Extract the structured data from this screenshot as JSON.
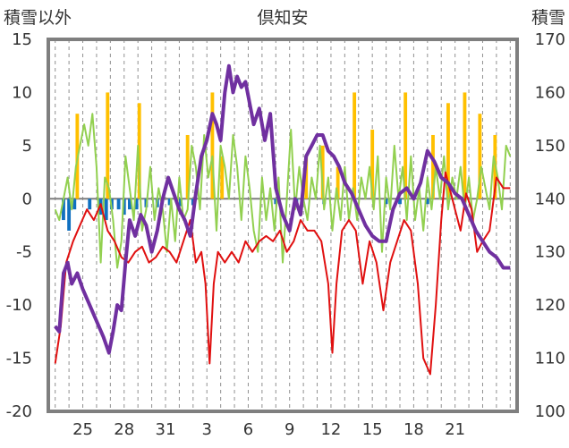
{
  "chart_data": {
    "type": "line",
    "title": "倶知安",
    "left_axis_label": "積雪以外",
    "right_axis_label": "積雪",
    "left_ylim": [
      -20,
      15
    ],
    "left_ticks": [
      "15",
      "10",
      "5",
      "0",
      "-5",
      "-10",
      "-15",
      "-20"
    ],
    "right_ylim": [
      100,
      170
    ],
    "right_ticks": [
      "170",
      "160",
      "150",
      "140",
      "130",
      "120",
      "110",
      "100"
    ],
    "x_ticks": [
      "25",
      "28",
      "31",
      "3",
      "6",
      "9",
      "12",
      "15",
      "18",
      "21"
    ],
    "grid": "vertical dashed",
    "colors": {
      "temperature": "#e01010",
      "snow_depth": "#7030a0",
      "precipitation_orange": "#ffc000",
      "precipitation_blue": "#1070c0",
      "green_series": "#92d050",
      "frame": "#7f7f7f"
    },
    "series": [
      {
        "key": "temperature",
        "axis": "left",
        "points": [
          [
            23.0,
            -15.5
          ],
          [
            23.4,
            -12.0
          ],
          [
            23.8,
            -6.0
          ],
          [
            24.3,
            -4.0
          ],
          [
            24.8,
            -2.5
          ],
          [
            25.3,
            -1.0
          ],
          [
            25.8,
            -2.0
          ],
          [
            26.3,
            -0.5
          ],
          [
            26.8,
            -3.0
          ],
          [
            27.3,
            -4.0
          ],
          [
            27.8,
            -5.5
          ],
          [
            28.3,
            -6.0
          ],
          [
            28.8,
            -5.0
          ],
          [
            29.3,
            -4.5
          ],
          [
            29.8,
            -6.0
          ],
          [
            30.3,
            -5.5
          ],
          [
            30.8,
            -4.5
          ],
          [
            31.3,
            -5.0
          ],
          [
            31.8,
            -6.0
          ],
          [
            32.3,
            -4.0
          ],
          [
            32.8,
            -2.0
          ],
          [
            33.2,
            -6.0
          ],
          [
            33.6,
            -5.0
          ],
          [
            33.9,
            -8.0
          ],
          [
            34.2,
            -15.5
          ],
          [
            34.5,
            -8.0
          ],
          [
            34.8,
            -5.0
          ],
          [
            35.3,
            -6.0
          ],
          [
            35.8,
            -5.0
          ],
          [
            36.3,
            -6.0
          ],
          [
            36.8,
            -4.0
          ],
          [
            37.3,
            -5.0
          ],
          [
            37.8,
            -4.0
          ],
          [
            38.3,
            -3.5
          ],
          [
            38.8,
            -4.0
          ],
          [
            39.3,
            -3.0
          ],
          [
            39.8,
            -5.0
          ],
          [
            40.3,
            -4.0
          ],
          [
            40.8,
            -2.0
          ],
          [
            41.3,
            -3.0
          ],
          [
            41.8,
            -3.0
          ],
          [
            42.3,
            -4.0
          ],
          [
            42.8,
            -8.0
          ],
          [
            43.1,
            -14.5
          ],
          [
            43.4,
            -8.0
          ],
          [
            43.8,
            -3.0
          ],
          [
            44.3,
            -2.0
          ],
          [
            44.8,
            -3.0
          ],
          [
            45.3,
            -8.0
          ],
          [
            45.8,
            -4.0
          ],
          [
            46.3,
            -6.0
          ],
          [
            46.8,
            -10.5
          ],
          [
            47.3,
            -6.0
          ],
          [
            47.8,
            -4.0
          ],
          [
            48.3,
            -2.0
          ],
          [
            48.8,
            -3.0
          ],
          [
            49.3,
            -8.0
          ],
          [
            49.7,
            -15.0
          ],
          [
            50.2,
            -16.5
          ],
          [
            50.6,
            -10.0
          ],
          [
            51.0,
            -2.0
          ],
          [
            51.3,
            2.5
          ],
          [
            51.6,
            1.0
          ],
          [
            52.0,
            -1.0
          ],
          [
            52.4,
            -3.0
          ],
          [
            52.8,
            0.5
          ],
          [
            53.2,
            -1.0
          ],
          [
            53.6,
            -5.0
          ],
          [
            54.0,
            -4.0
          ],
          [
            54.5,
            -3.0
          ],
          [
            55.0,
            2.0
          ],
          [
            55.5,
            1.0
          ],
          [
            56.0,
            1.0
          ]
        ]
      },
      {
        "key": "snow_depth",
        "axis": "right",
        "points": [
          [
            23.0,
            116.0
          ],
          [
            23.3,
            115.0
          ],
          [
            23.6,
            126.0
          ],
          [
            23.9,
            128.0
          ],
          [
            24.2,
            124.0
          ],
          [
            24.6,
            126.0
          ],
          [
            25.0,
            123.0
          ],
          [
            25.5,
            120.0
          ],
          [
            26.0,
            117.0
          ],
          [
            26.5,
            114.0
          ],
          [
            26.9,
            111.0
          ],
          [
            27.2,
            115.0
          ],
          [
            27.5,
            120.0
          ],
          [
            27.8,
            119.0
          ],
          [
            28.1,
            128.0
          ],
          [
            28.4,
            136.0
          ],
          [
            28.8,
            133.0
          ],
          [
            29.2,
            137.0
          ],
          [
            29.6,
            135.0
          ],
          [
            30.0,
            130.0
          ],
          [
            30.4,
            134.0
          ],
          [
            30.8,
            140.0
          ],
          [
            31.2,
            144.0
          ],
          [
            31.6,
            141.0
          ],
          [
            32.0,
            138.0
          ],
          [
            32.4,
            136.0
          ],
          [
            32.8,
            133.0
          ],
          [
            33.2,
            141.0
          ],
          [
            33.6,
            148.0
          ],
          [
            34.0,
            151.0
          ],
          [
            34.4,
            156.0
          ],
          [
            34.7,
            154.0
          ],
          [
            35.0,
            151.0
          ],
          [
            35.3,
            160.0
          ],
          [
            35.6,
            165.0
          ],
          [
            35.9,
            160.0
          ],
          [
            36.2,
            163.0
          ],
          [
            36.5,
            161.0
          ],
          [
            36.8,
            162.0
          ],
          [
            37.1,
            158.0
          ],
          [
            37.4,
            154.0
          ],
          [
            37.8,
            157.0
          ],
          [
            38.2,
            151.0
          ],
          [
            38.6,
            156.0
          ],
          [
            39.0,
            142.0
          ],
          [
            39.5,
            137.0
          ],
          [
            40.0,
            134.0
          ],
          [
            40.4,
            140.0
          ],
          [
            40.8,
            137.0
          ],
          [
            41.2,
            148.0
          ],
          [
            41.6,
            150.0
          ],
          [
            42.0,
            152.0
          ],
          [
            42.4,
            152.0
          ],
          [
            42.8,
            149.0
          ],
          [
            43.2,
            148.0
          ],
          [
            43.6,
            146.0
          ],
          [
            44.0,
            143.0
          ],
          [
            44.5,
            141.0
          ],
          [
            45.0,
            138.0
          ],
          [
            45.5,
            135.0
          ],
          [
            46.0,
            133.0
          ],
          [
            46.5,
            132.0
          ],
          [
            47.0,
            132.0
          ],
          [
            47.5,
            138.0
          ],
          [
            48.0,
            141.0
          ],
          [
            48.5,
            142.0
          ],
          [
            49.0,
            140.0
          ],
          [
            49.5,
            143.0
          ],
          [
            50.0,
            149.0
          ],
          [
            50.5,
            147.0
          ],
          [
            51.0,
            144.0
          ],
          [
            51.5,
            143.0
          ],
          [
            52.0,
            141.0
          ],
          [
            52.5,
            140.0
          ],
          [
            53.0,
            137.0
          ],
          [
            53.5,
            134.0
          ],
          [
            54.0,
            132.0
          ],
          [
            54.5,
            130.0
          ],
          [
            55.0,
            129.0
          ],
          [
            55.5,
            127.0
          ],
          [
            56.0,
            127.0
          ]
        ]
      },
      {
        "key": "green_series",
        "axis": "left",
        "points": [
          [
            23.0,
            -1.0
          ],
          [
            23.3,
            -2.0
          ],
          [
            23.6,
            0.0
          ],
          [
            23.9,
            2.0
          ],
          [
            24.2,
            -1.0
          ],
          [
            24.5,
            3.0
          ],
          [
            24.8,
            5.0
          ],
          [
            25.1,
            7.0
          ],
          [
            25.4,
            5.0
          ],
          [
            25.7,
            8.0
          ],
          [
            26.0,
            3.0
          ],
          [
            26.3,
            -6.0
          ],
          [
            26.6,
            2.0
          ],
          [
            26.9,
            1.0
          ],
          [
            27.2,
            -2.0
          ],
          [
            27.5,
            -6.5
          ],
          [
            27.8,
            -4.0
          ],
          [
            28.1,
            4.0
          ],
          [
            28.4,
            1.0
          ],
          [
            28.7,
            -2.0
          ],
          [
            29.0,
            5.0
          ],
          [
            29.3,
            -3.0
          ],
          [
            29.6,
            -1.0
          ],
          [
            29.9,
            3.0
          ],
          [
            30.2,
            -2.0
          ],
          [
            30.5,
            1.0
          ],
          [
            30.8,
            -1.0
          ],
          [
            31.1,
            -5.0
          ],
          [
            31.4,
            0.0
          ],
          [
            31.7,
            -4.0
          ],
          [
            32.0,
            2.0
          ],
          [
            32.3,
            -2.0
          ],
          [
            32.6,
            -1.0
          ],
          [
            32.9,
            5.0
          ],
          [
            33.2,
            3.0
          ],
          [
            33.5,
            -1.0
          ],
          [
            33.8,
            6.0
          ],
          [
            34.1,
            2.0
          ],
          [
            34.4,
            4.0
          ],
          [
            34.7,
            -3.0
          ],
          [
            35.0,
            5.0
          ],
          [
            35.3,
            3.0
          ],
          [
            35.6,
            0.0
          ],
          [
            35.9,
            6.0
          ],
          [
            36.2,
            3.0
          ],
          [
            36.5,
            -2.0
          ],
          [
            36.8,
            4.0
          ],
          [
            37.1,
            1.0
          ],
          [
            37.4,
            -3.0
          ],
          [
            37.7,
            -5.0
          ],
          [
            38.0,
            2.0
          ],
          [
            38.3,
            -2.0
          ],
          [
            38.6,
            1.0
          ],
          [
            38.9,
            -3.0
          ],
          [
            39.2,
            2.0
          ],
          [
            39.5,
            -6.0
          ],
          [
            39.8,
            0.0
          ],
          [
            40.1,
            6.5
          ],
          [
            40.4,
            -1.0
          ],
          [
            40.7,
            3.0
          ],
          [
            41.0,
            0.0
          ],
          [
            41.3,
            -2.0
          ],
          [
            41.6,
            2.0
          ],
          [
            41.9,
            0.0
          ],
          [
            42.2,
            5.0
          ],
          [
            42.5,
            -1.0
          ],
          [
            42.8,
            2.0
          ],
          [
            43.1,
            -3.0
          ],
          [
            43.4,
            1.0
          ],
          [
            43.7,
            -2.0
          ],
          [
            44.0,
            3.0
          ],
          [
            44.3,
            -2.0
          ],
          [
            44.6,
            1.0
          ],
          [
            44.9,
            -2.0
          ],
          [
            45.2,
            2.0
          ],
          [
            45.5,
            0.0
          ],
          [
            45.8,
            3.0
          ],
          [
            46.1,
            -1.0
          ],
          [
            46.4,
            4.0
          ],
          [
            46.7,
            -5.0
          ],
          [
            47.0,
            2.0
          ],
          [
            47.3,
            -1.0
          ],
          [
            47.6,
            5.0
          ],
          [
            47.9,
            0.0
          ],
          [
            48.2,
            3.0
          ],
          [
            48.5,
            -2.0
          ],
          [
            48.8,
            4.0
          ],
          [
            49.1,
            -2.0
          ],
          [
            49.4,
            1.0
          ],
          [
            49.7,
            -3.0
          ],
          [
            50.0,
            2.0
          ],
          [
            50.3,
            -1.0
          ],
          [
            50.6,
            3.0
          ],
          [
            50.9,
            0.0
          ],
          [
            51.2,
            4.0
          ],
          [
            51.5,
            -1.0
          ],
          [
            51.8,
            2.0
          ],
          [
            52.1,
            0.0
          ],
          [
            52.4,
            3.0
          ],
          [
            52.7,
            -1.0
          ],
          [
            53.0,
            2.0
          ],
          [
            53.3,
            -2.0
          ],
          [
            53.6,
            0.0
          ],
          [
            53.9,
            3.0
          ],
          [
            54.2,
            1.0
          ],
          [
            54.5,
            -1.0
          ],
          [
            54.8,
            4.0
          ],
          [
            55.1,
            2.0
          ],
          [
            55.4,
            -1.0
          ],
          [
            55.7,
            5.0
          ],
          [
            56.0,
            4.0
          ]
        ]
      }
    ],
    "bars_blue": [
      [
        23.6,
        -2
      ],
      [
        24.0,
        -3
      ],
      [
        24.4,
        -1
      ],
      [
        25.5,
        -1
      ],
      [
        26.3,
        -1.5
      ],
      [
        26.7,
        -2
      ],
      [
        27.1,
        -1
      ],
      [
        27.6,
        -1
      ],
      [
        28.0,
        -1.5
      ],
      [
        28.4,
        -1
      ],
      [
        28.9,
        -1
      ],
      [
        29.6,
        -0.8
      ],
      [
        30.4,
        -0.8
      ],
      [
        31.3,
        -0.6
      ],
      [
        32.1,
        -0.7
      ],
      [
        33.0,
        -0.6
      ],
      [
        39.0,
        -0.5
      ],
      [
        40.5,
        -0.5
      ],
      [
        42.5,
        -0.5
      ],
      [
        47.0,
        -0.5
      ],
      [
        48.0,
        -0.5
      ],
      [
        50.0,
        -0.5
      ]
    ],
    "bars_orange": [
      [
        24.6,
        8.0
      ],
      [
        26.8,
        10.0
      ],
      [
        29.1,
        9.0
      ],
      [
        32.6,
        6.0
      ],
      [
        34.4,
        10.0
      ],
      [
        35.1,
        4.0
      ],
      [
        41.2,
        4.0
      ],
      [
        42.4,
        5.0
      ],
      [
        43.5,
        3.0
      ],
      [
        44.7,
        10.0
      ],
      [
        46.0,
        6.5
      ],
      [
        48.4,
        10.0
      ],
      [
        50.4,
        6.0
      ],
      [
        51.5,
        9.0
      ],
      [
        52.7,
        10.0
      ],
      [
        53.8,
        8.0
      ],
      [
        54.9,
        6.0
      ]
    ]
  }
}
